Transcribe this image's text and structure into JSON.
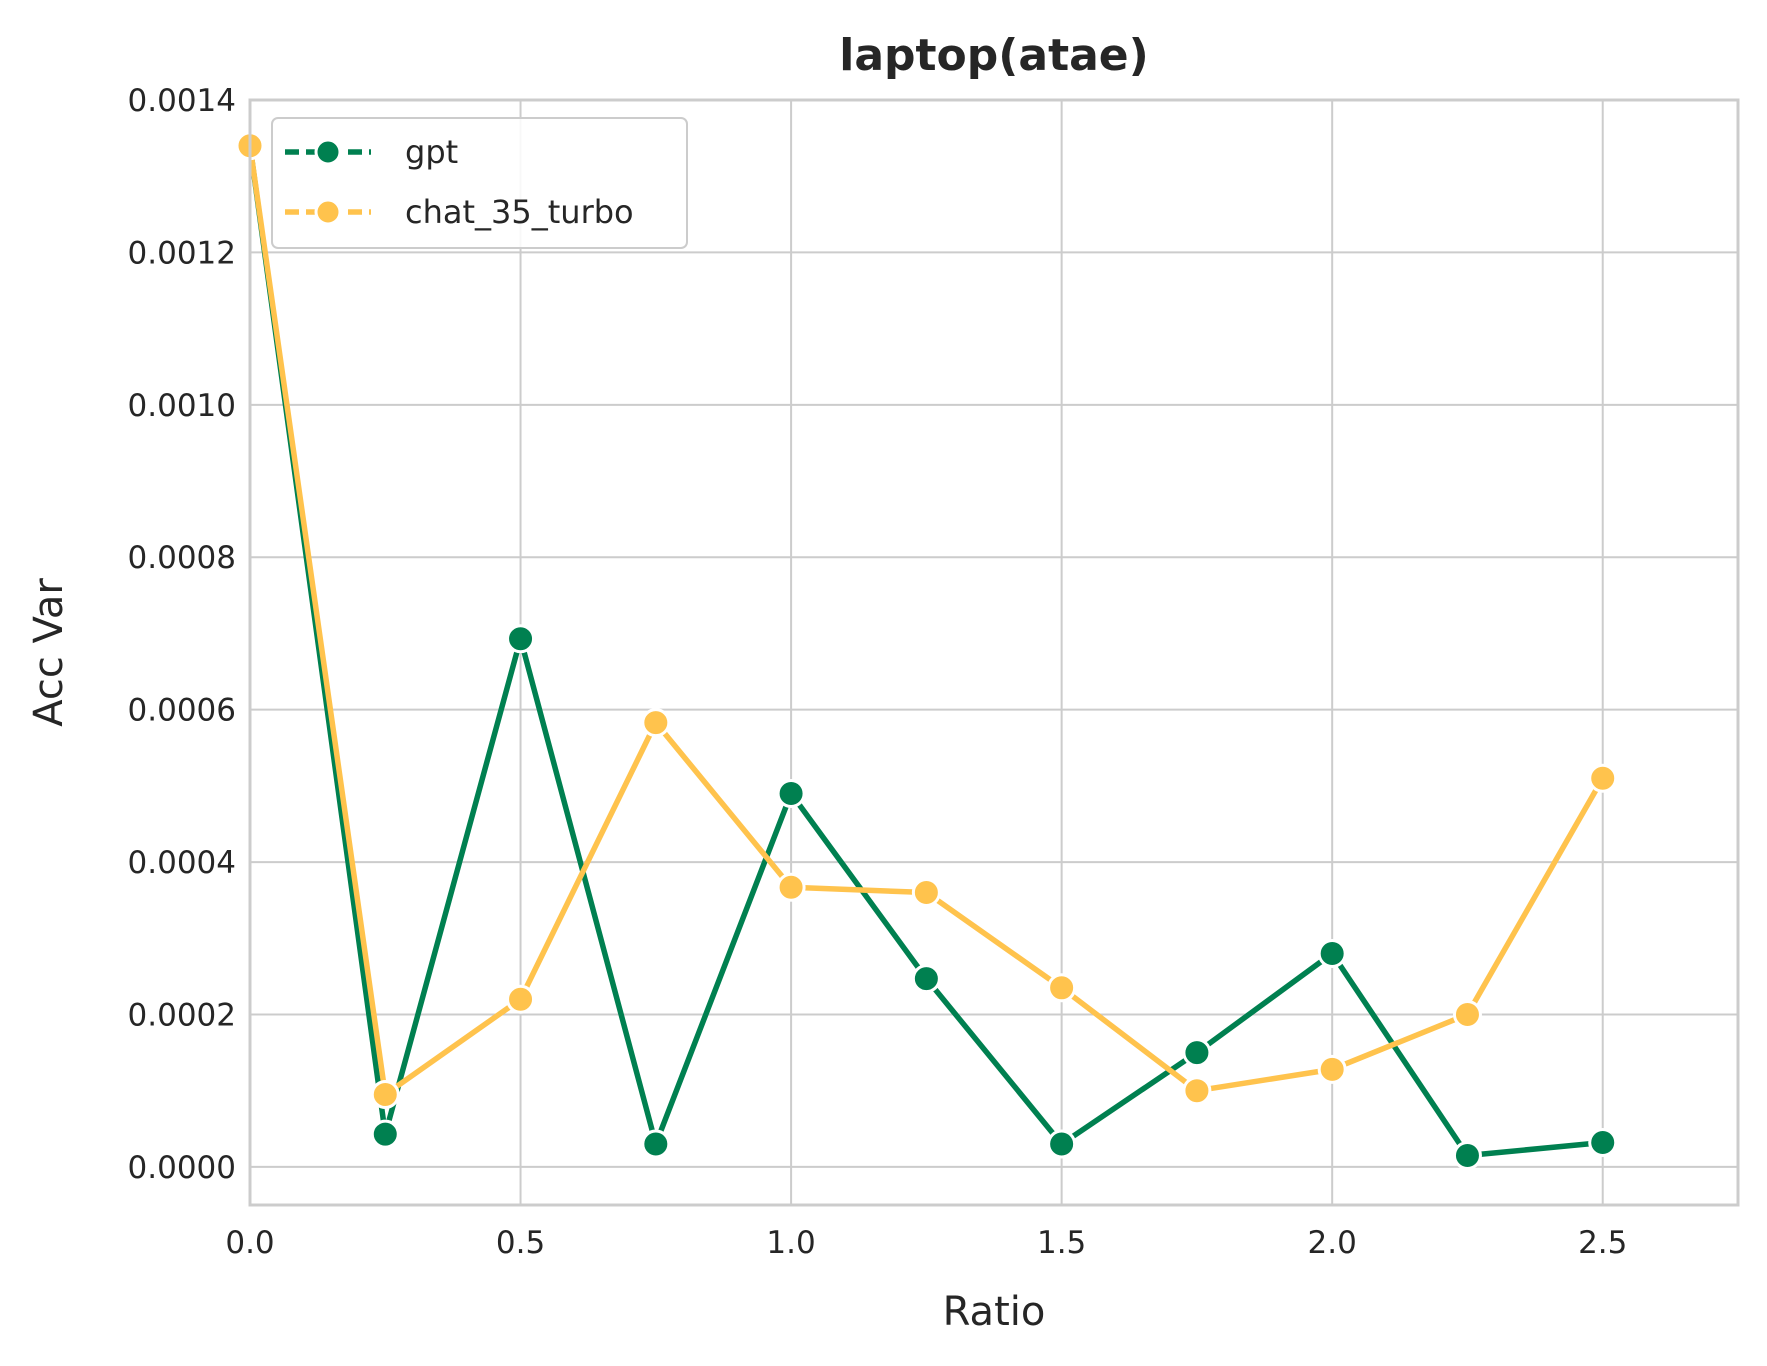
{
  "chart_data": {
    "type": "line",
    "title": "laptop(atae)",
    "xlabel": "Ratio",
    "ylabel": "Acc Var",
    "xlim": [
      0.0,
      2.75
    ],
    "ylim": [
      -5e-05,
      0.0014
    ],
    "xticks": [
      0.0,
      0.5,
      1.0,
      1.5,
      2.0,
      2.5
    ],
    "xtick_labels": [
      "0.0",
      "0.5",
      "1.0",
      "1.5",
      "2.0",
      "2.5"
    ],
    "yticks": [
      0.0,
      0.0002,
      0.0004,
      0.0006,
      0.0008,
      0.001,
      0.0012,
      0.0014
    ],
    "ytick_labels": [
      "0.0000",
      "0.0002",
      "0.0004",
      "0.0006",
      "0.0008",
      "0.0010",
      "0.0012",
      "0.0014"
    ],
    "grid": true,
    "legend_position": "top-left",
    "x": [
      0.0,
      0.25,
      0.5,
      0.75,
      1.0,
      1.25,
      1.5,
      1.75,
      2.0,
      2.25,
      2.5
    ],
    "series": [
      {
        "name": "gpt",
        "color": "#008050",
        "values": [
          0.00134,
          4.3e-05,
          0.000693,
          3e-05,
          0.00049,
          0.000247,
          3e-05,
          0.00015,
          0.00028,
          1.5e-05,
          3.2e-05
        ]
      },
      {
        "name": "chat_35_turbo",
        "color": "#FFC34D",
        "values": [
          0.00134,
          9.5e-05,
          0.00022,
          0.000583,
          0.000367,
          0.00036,
          0.000235,
          0.0001,
          0.000128,
          0.0002,
          0.00051
        ]
      }
    ]
  }
}
